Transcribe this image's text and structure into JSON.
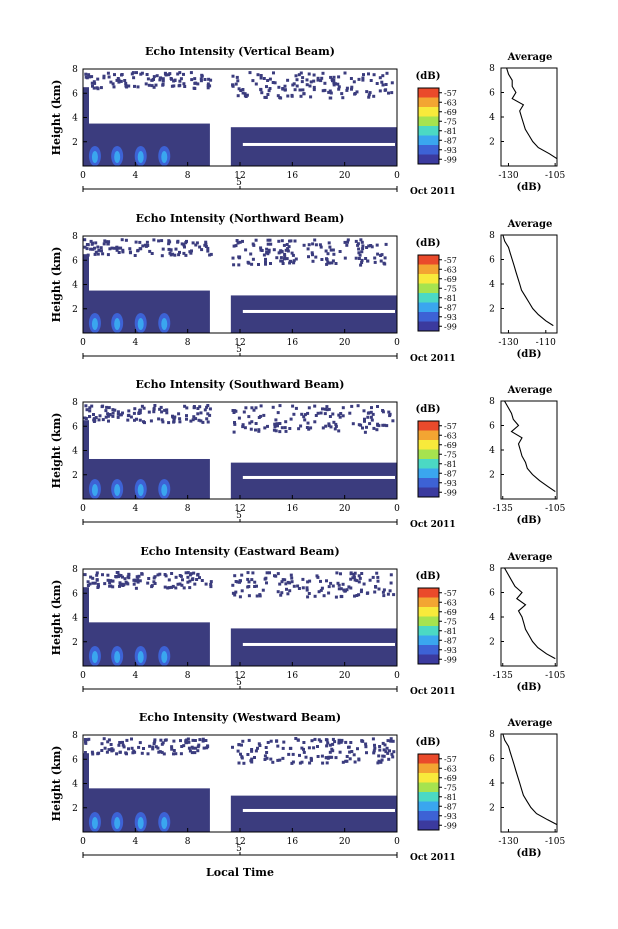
{
  "xlabel": "Local Time",
  "date_label": "Oct 2011",
  "colorbar": {
    "unit": "(dB)",
    "ticks": [
      "-57",
      "-63",
      "-69",
      "-75",
      "-81",
      "-87",
      "-93",
      "-99"
    ],
    "colors": [
      "#ea4a2b",
      "#f3a532",
      "#f8ea3b",
      "#a6e34f",
      "#4bd9c4",
      "#3aa6ef",
      "#3d62d5",
      "#3b3a9e"
    ]
  },
  "fill_color": "#3b3c7e",
  "panel_color_background": "#ffffff",
  "chart_data": [
    {
      "type": "heatmap",
      "title": "Echo Intensity (Vertical Beam)",
      "ylabel": "Height (km)",
      "yticks": [
        "2",
        "4",
        "6",
        "8"
      ],
      "ylim": [
        0,
        8
      ],
      "xticks": [
        "0",
        "4",
        "8",
        "12",
        "16",
        "20",
        "0"
      ],
      "mid_label": "5",
      "xlim": [
        0,
        24
      ],
      "gap_hours": [
        9.7,
        11.3
      ],
      "band_top_km": [
        3.2,
        3.5
      ],
      "profile": {
        "title": "Average",
        "xticks": [
          "-130",
          "-105"
        ],
        "xlim": [
          -134,
          -104
        ],
        "xlabel": "(dB)",
        "yticks": [
          "2",
          "4",
          "6",
          "8"
        ],
        "height_km": [
          0.6,
          1.0,
          1.5,
          2.0,
          2.5,
          3.0,
          3.5,
          4.0,
          4.5,
          5.0,
          5.5,
          6.0,
          6.5,
          7.0,
          7.5,
          8.0
        ],
        "db": [
          -104,
          -108,
          -114,
          -117,
          -119,
          -121,
          -122,
          -123,
          -124,
          -122,
          -128,
          -126,
          -128,
          -128,
          -130,
          -131
        ]
      }
    },
    {
      "type": "heatmap",
      "title": "Echo Intensity (Northward Beam)",
      "ylabel": "Height (km)",
      "yticks": [
        "2",
        "4",
        "6",
        "8"
      ],
      "ylim": [
        0,
        8
      ],
      "xticks": [
        "0",
        "4",
        "8",
        "12",
        "16",
        "20",
        "0"
      ],
      "mid_label": "5",
      "xlim": [
        0,
        24
      ],
      "gap_hours": [
        9.7,
        11.3
      ],
      "band_top_km": [
        3.1,
        3.5
      ],
      "profile": {
        "title": "Average",
        "xticks": [
          "-130",
          "-110"
        ],
        "xlim": [
          -134,
          -104
        ],
        "xlabel": "(dB)",
        "yticks": [
          "2",
          "4",
          "6",
          "8"
        ],
        "height_km": [
          0.6,
          1.0,
          1.5,
          2.0,
          2.5,
          3.0,
          3.5,
          4.0,
          4.5,
          5.0,
          5.5,
          6.0,
          6.5,
          7.0,
          7.5,
          8.0
        ],
        "db": [
          -106,
          -110,
          -114,
          -117,
          -119,
          -121,
          -123,
          -124,
          -125,
          -126,
          -127,
          -128,
          -129,
          -130,
          -132,
          -133
        ]
      }
    },
    {
      "type": "heatmap",
      "title": "Echo Intensity (Southward Beam)",
      "ylabel": "Height (km)",
      "yticks": [
        "2",
        "4",
        "6",
        "8"
      ],
      "ylim": [
        0,
        8
      ],
      "xticks": [
        "0",
        "4",
        "8",
        "12",
        "16",
        "20",
        "0"
      ],
      "mid_label": "5",
      "xlim": [
        0,
        24
      ],
      "gap_hours": [
        9.7,
        11.3
      ],
      "band_top_km": [
        3.0,
        3.3
      ],
      "profile": {
        "title": "Average",
        "xticks": [
          "-135",
          "-105"
        ],
        "xlim": [
          -136,
          -104
        ],
        "xlabel": "(dB)",
        "yticks": [
          "2",
          "4",
          "6",
          "8"
        ],
        "height_km": [
          0.6,
          1.0,
          1.5,
          2.0,
          2.5,
          3.0,
          3.5,
          4.0,
          4.5,
          5.0,
          5.5,
          6.0,
          6.5,
          7.0,
          7.5,
          8.0
        ],
        "db": [
          -105,
          -109,
          -114,
          -118,
          -121,
          -122,
          -124,
          -125,
          -126,
          -124,
          -130,
          -126,
          -129,
          -130,
          -132,
          -134
        ]
      }
    },
    {
      "type": "heatmap",
      "title": "Echo Intensity (Eastward Beam)",
      "ylabel": "Height (km)",
      "yticks": [
        "2",
        "4",
        "6",
        "8"
      ],
      "ylim": [
        0,
        8
      ],
      "xticks": [
        "0",
        "4",
        "8",
        "12",
        "16",
        "20",
        "0"
      ],
      "mid_label": "5",
      "xlim": [
        0,
        24
      ],
      "gap_hours": [
        9.7,
        11.3
      ],
      "band_top_km": [
        3.1,
        3.6
      ],
      "profile": {
        "title": "Average",
        "xticks": [
          "-135",
          "-105"
        ],
        "xlim": [
          -136,
          -104
        ],
        "xlabel": "(dB)",
        "yticks": [
          "2",
          "4",
          "6",
          "8"
        ],
        "height_km": [
          0.6,
          1.0,
          1.5,
          2.0,
          2.5,
          3.0,
          3.5,
          4.0,
          4.5,
          5.0,
          5.5,
          6.0,
          6.5,
          7.0,
          7.5,
          8.0
        ],
        "db": [
          -105,
          -110,
          -115,
          -118,
          -120,
          -122,
          -123,
          -124,
          -126,
          -122,
          -127,
          -124,
          -128,
          -130,
          -132,
          -134
        ]
      }
    },
    {
      "type": "heatmap",
      "title": "Echo Intensity (Westward Beam)",
      "ylabel": "Height (km)",
      "yticks": [
        "2",
        "4",
        "6",
        "8"
      ],
      "ylim": [
        0,
        8
      ],
      "xticks": [
        "0",
        "4",
        "8",
        "12",
        "16",
        "20",
        "0"
      ],
      "mid_label": "5",
      "xlim": [
        0,
        24
      ],
      "gap_hours": [
        9.7,
        11.3
      ],
      "band_top_km": [
        3.0,
        3.6
      ],
      "profile": {
        "title": "Average",
        "xticks": [
          "-130",
          "-105"
        ],
        "xlim": [
          -134,
          -104
        ],
        "xlabel": "(dB)",
        "yticks": [
          "2",
          "4",
          "6",
          "8"
        ],
        "height_km": [
          0.6,
          1.0,
          1.5,
          2.0,
          2.5,
          3.0,
          3.5,
          4.0,
          4.5,
          5.0,
          5.5,
          6.0,
          6.5,
          7.0,
          7.5,
          8.0
        ],
        "db": [
          -104,
          -109,
          -115,
          -118,
          -120,
          -122,
          -123,
          -124,
          -125,
          -126,
          -127,
          -128,
          -129,
          -130,
          -132,
          -133
        ]
      }
    }
  ]
}
